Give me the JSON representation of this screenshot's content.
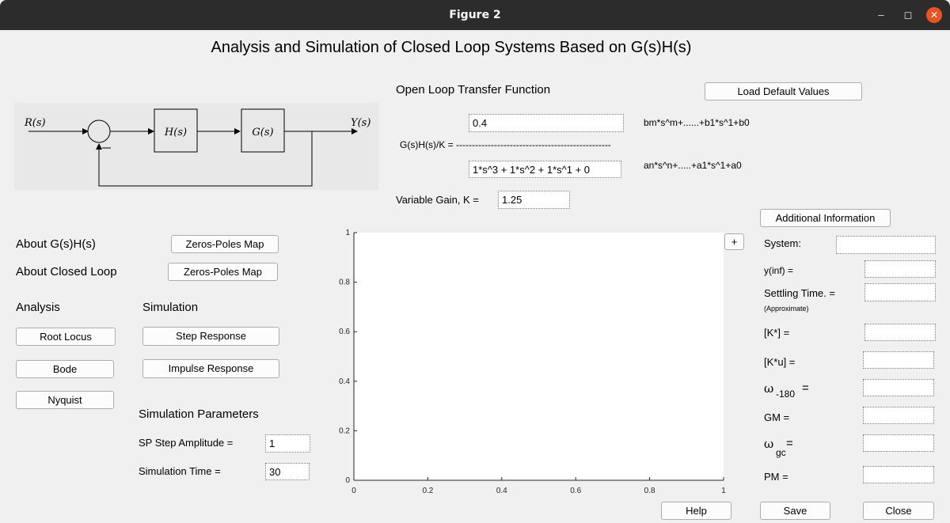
{
  "window": {
    "title": "Figure 2",
    "minimize": "–",
    "maximize": "◻",
    "close": "✕"
  },
  "main_title": "Analysis and Simulation of Closed Loop Systems Based on G(s)H(s)",
  "diagram": {
    "input": "R(s)",
    "output": "Y(s)",
    "h_block": "H(s)",
    "g_block": "G(s)"
  },
  "tf": {
    "heading": "Open Loop Transfer Function",
    "load_default": "Load Default Values",
    "numerator": "0.4",
    "numerator_hint": "bm*s^m+......+b1*s^1+b0",
    "fraction_label": "G(s)H(s)/K = -------------------------------------------------",
    "denominator": "1*s^3 + 1*s^2 + 1*s^1 + 0",
    "denominator_hint": "an*s^n+.....+a1*s^1+a0",
    "gain_label": "Variable Gain, K =",
    "gain": "1.25"
  },
  "left": {
    "about_gh": "About G(s)H(s)",
    "about_cl": "About Closed Loop",
    "zeros_poles_1": "Zeros-Poles Map",
    "zeros_poles_2": "Zeros-Poles Map",
    "analysis": "Analysis",
    "simulation": "Simulation",
    "root_locus": "Root Locus",
    "bode": "Bode",
    "nyquist": "Nyquist",
    "step_response": "Step Response",
    "impulse_response": "Impulse Response",
    "sim_params": "Simulation Parameters",
    "step_amp_label": "SP Step Amplitude =",
    "step_amp": "1",
    "sim_time_label": "Simulation Time =",
    "sim_time": "30"
  },
  "plot": {
    "expand": "+",
    "xticks": [
      "0",
      "0.2",
      "0.4",
      "0.6",
      "0.8",
      "1"
    ],
    "yticks": [
      "0",
      "0.2",
      "0.4",
      "0.6",
      "0.8",
      "1"
    ]
  },
  "right": {
    "additional_info": "Additional Information",
    "system_label": "System:",
    "yinf_label": "y(inf) =",
    "settling_label": "Settling Time. =",
    "approx": "(Approximate)",
    "kstar_label": "[K*] =",
    "ku_label": "[K*u] =",
    "omega": "ω",
    "w180_sub": "-180",
    "eq": "=",
    "gm_label": "GM =",
    "wgc_sub": "gc",
    "pm_label": "PM  ="
  },
  "footer": {
    "help": "Help",
    "save": "Save",
    "close": "Close"
  },
  "colors": {
    "titlebar": "#2c2c2c",
    "close_button": "#e95420",
    "background": "#f0f0f0"
  }
}
